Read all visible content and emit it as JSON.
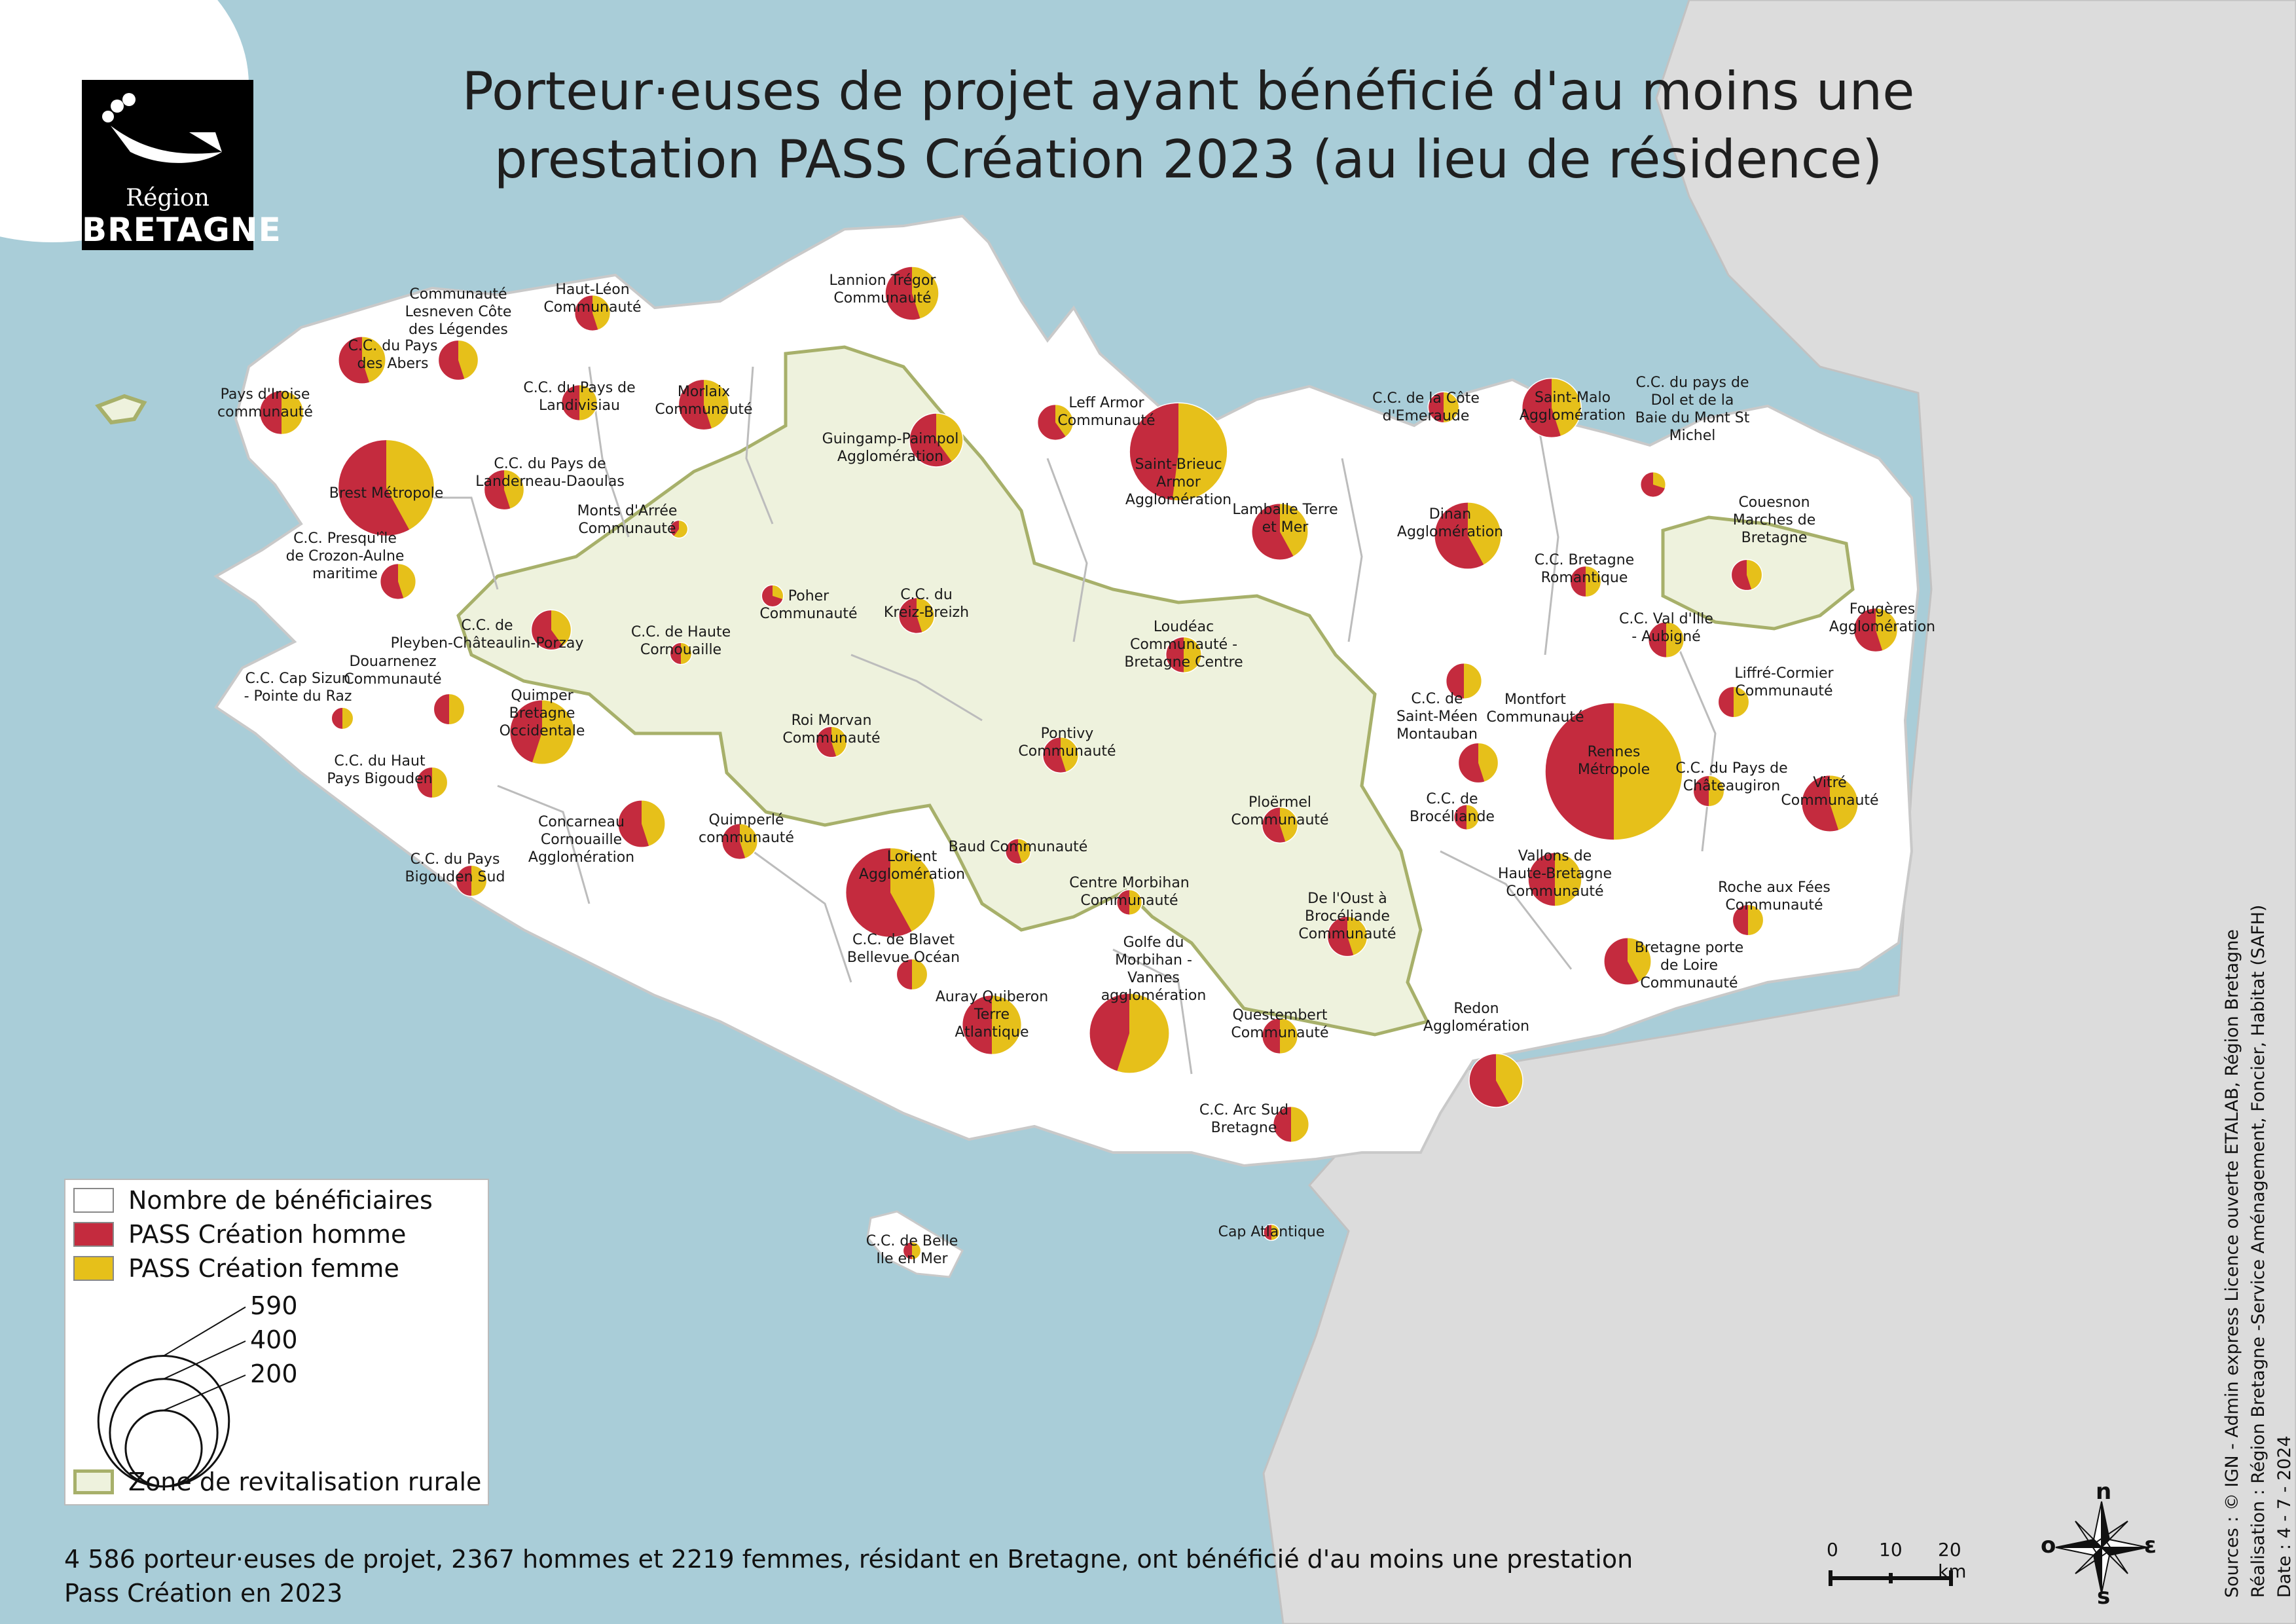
{
  "title": {
    "line1": "Porteur·euses de projet ayant bénéficié d'au moins une",
    "line2": "prestation PASS Création 2023 (au lieu de résidence)"
  },
  "logo": {
    "small": "Région",
    "big": "BRETAGNE"
  },
  "colors": {
    "homme": "#c42b3e",
    "femme": "#e6c01a",
    "sea": "#a9cdd8",
    "land": "#ffffff",
    "outside": "#dcdcdc",
    "zrr": "#eef2dd",
    "zrr_border": "#a7b06a"
  },
  "legend": {
    "total": "Nombre de bénéficiaires",
    "homme": "PASS Création homme",
    "femme": "PASS Création femme",
    "sizes": [
      590,
      400,
      200
    ],
    "zrr": "Zone de revitalisation rurale"
  },
  "footer": {
    "line1": "4 586 porteur·euses de projet, 2367 hommes et 2219 femmes, résidant en Bretagne, ont bénéficié d'au moins une prestation",
    "line2": "Pass Création en 2023"
  },
  "sources": {
    "line1": "Sources : © IGN - Admin express Licence ouverte ETALAB, Région Bretagne",
    "line2": "Réalisation : Région Bretagne -Service Aménagement, Foncier, Habitat  (SAFH)",
    "line3": "Date : 4 - 7 - 2024"
  },
  "scale": {
    "t0": "0",
    "t1": "10",
    "t2": "20 km"
  },
  "compass": {
    "n": "n",
    "s": "s",
    "e": "ɛ",
    "o": "o"
  },
  "epci": [
    {
      "name": "Brest Métropole",
      "total": 290,
      "femme_share": 0.42
    },
    {
      "name": "C.C. du Pays des Abers",
      "total": 70,
      "femme_share": 0.45
    },
    {
      "name": "Communauté Lesneven Côte des Légendes",
      "total": 50,
      "femme_share": 0.45
    },
    {
      "name": "Haut-Léon Communauté",
      "total": 40,
      "femme_share": 0.45
    },
    {
      "name": "Pays d'Iroise communauté",
      "total": 60,
      "femme_share": 0.5
    },
    {
      "name": "C.C. du Pays de Landivisiau",
      "total": 40,
      "femme_share": 0.5
    },
    {
      "name": "Morlaix Communauté",
      "total": 80,
      "femme_share": 0.45
    },
    {
      "name": "C.C. du Pays de Landerneau-Daoulas",
      "total": 50,
      "femme_share": 0.45
    },
    {
      "name": "Lannion Trégor Communauté",
      "total": 90,
      "femme_share": 0.45
    },
    {
      "name": "Guingamp-Paimpol Agglomération",
      "total": 90,
      "femme_share": 0.4
    },
    {
      "name": "Leff Armor Communauté",
      "total": 40,
      "femme_share": 0.4
    },
    {
      "name": "Saint-Brieuc Armor Agglomération",
      "total": 300,
      "femme_share": 0.52
    },
    {
      "name": "Lamballe Terre et Mer",
      "total": 100,
      "femme_share": 0.42
    },
    {
      "name": "C.C. de la Côte d'Emeraude",
      "total": 30,
      "femme_share": 0.5
    },
    {
      "name": "Saint-Malo Agglomération",
      "total": 110,
      "femme_share": 0.45
    },
    {
      "name": "C.C. du pays de Dol et de la Baie du Mont St Michel",
      "total": 20,
      "femme_share": 0.3
    },
    {
      "name": "Dinan Agglomération",
      "total": 140,
      "femme_share": 0.42
    },
    {
      "name": "Monts d'Arrée Communauté",
      "total": 10,
      "femme_share": 0.6
    },
    {
      "name": "C.C. Presqu'île de Crozon-Aulne maritime",
      "total": 40,
      "femme_share": 0.45
    },
    {
      "name": "C.C. de Pleyben-Châteaulin-Porzay",
      "total": 50,
      "femme_share": 0.4
    },
    {
      "name": "C.C. de Haute Cornouaille",
      "total": 15,
      "femme_share": 0.5
    },
    {
      "name": "Poher Communauté",
      "total": 15,
      "femme_share": 0.3
    },
    {
      "name": "C.C. du Kreiz-Breizh",
      "total": 40,
      "femme_share": 0.45
    },
    {
      "name": "Loudéac Communauté - Bretagne Centre",
      "total": 40,
      "femme_share": 0.5
    },
    {
      "name": "C.C. Bretagne Romantique",
      "total": 30,
      "femme_share": 0.5
    },
    {
      "name": "Couesnon Marches de Bretagne",
      "total": 30,
      "femme_share": 0.45
    },
    {
      "name": "Fougères Agglomération",
      "total": 60,
      "femme_share": 0.45
    },
    {
      "name": "C.C. Val d'Ille - Aubigné",
      "total": 40,
      "femme_share": 0.5
    },
    {
      "name": "Liffré-Cormier Communauté",
      "total": 30,
      "femme_share": 0.5
    },
    {
      "name": "C.C. Cap Sizun - Pointe du Raz",
      "total": 15,
      "femme_share": 0.5
    },
    {
      "name": "Douarnenez Communauté",
      "total": 30,
      "femme_share": 0.5
    },
    {
      "name": "Quimper Bretagne Occidentale",
      "total": 130,
      "femme_share": 0.55
    },
    {
      "name": "C.C. du Haut Pays Bigouden",
      "total": 30,
      "femme_share": 0.5
    },
    {
      "name": "Concarneau Cornouaille Agglomération",
      "total": 70,
      "femme_share": 0.45
    },
    {
      "name": "C.C. du Pays Bigouden Sud",
      "total": 30,
      "femme_share": 0.5
    },
    {
      "name": "Quimperlé communauté",
      "total": 40,
      "femme_share": 0.45
    },
    {
      "name": "Roi Morvan Communauté",
      "total": 30,
      "femme_share": 0.45
    },
    {
      "name": "Pontivy Communauté",
      "total": 40,
      "femme_share": 0.45
    },
    {
      "name": "C.C. de Saint-Méen Montauban",
      "total": 50,
      "femme_share": 0.45
    },
    {
      "name": "Montfort Communauté",
      "total": 40,
      "femme_share": 0.5
    },
    {
      "name": "Rennes Métropole",
      "total": 590,
      "femme_share": 0.5
    },
    {
      "name": "C.C. du Pays de Châteaugiron",
      "total": 30,
      "femme_share": 0.5
    },
    {
      "name": "Vitré Communauté",
      "total": 100,
      "femme_share": 0.45
    },
    {
      "name": "C.C. de Brocéliande",
      "total": 20,
      "femme_share": 0.5
    },
    {
      "name": "Ploërmel Communauté",
      "total": 40,
      "femme_share": 0.45
    },
    {
      "name": "Baud Communauté",
      "total": 20,
      "femme_share": 0.45
    },
    {
      "name": "Lorient Agglomération",
      "total": 250,
      "femme_share": 0.42
    },
    {
      "name": "Centre Morbihan Communauté",
      "total": 20,
      "femme_share": 0.5
    },
    {
      "name": "De l'Oust à Brocéliande Communauté",
      "total": 50,
      "femme_share": 0.45
    },
    {
      "name": "Vallons de Haute-Bretagne Communauté",
      "total": 90,
      "femme_share": 0.5
    },
    {
      "name": "Roche aux Fées Communauté",
      "total": 30,
      "femme_share": 0.5
    },
    {
      "name": "C.C. de Blavet Bellevue Océan",
      "total": 30,
      "femme_share": 0.5
    },
    {
      "name": "Auray Quiberon Terre Atlantique",
      "total": 110,
      "femme_share": 0.5
    },
    {
      "name": "Golfe du Morbihan - Vannes agglomération",
      "total": 200,
      "femme_share": 0.55
    },
    {
      "name": "Questembert Communauté",
      "total": 40,
      "femme_share": 0.5
    },
    {
      "name": "Bretagne porte de Loire Communauté",
      "total": 70,
      "femme_share": 0.42
    },
    {
      "name": "Redon Agglomération",
      "total": 90,
      "femme_share": 0.42
    },
    {
      "name": "C.C. Arc Sud Bretagne",
      "total": 40,
      "femme_share": 0.5
    },
    {
      "name": "C.C. de Belle Ile en Mer",
      "total": 10,
      "femme_share": 0.5
    },
    {
      "name": "Cap Atlantique",
      "total": 8,
      "femme_share": 0.5
    }
  ]
}
